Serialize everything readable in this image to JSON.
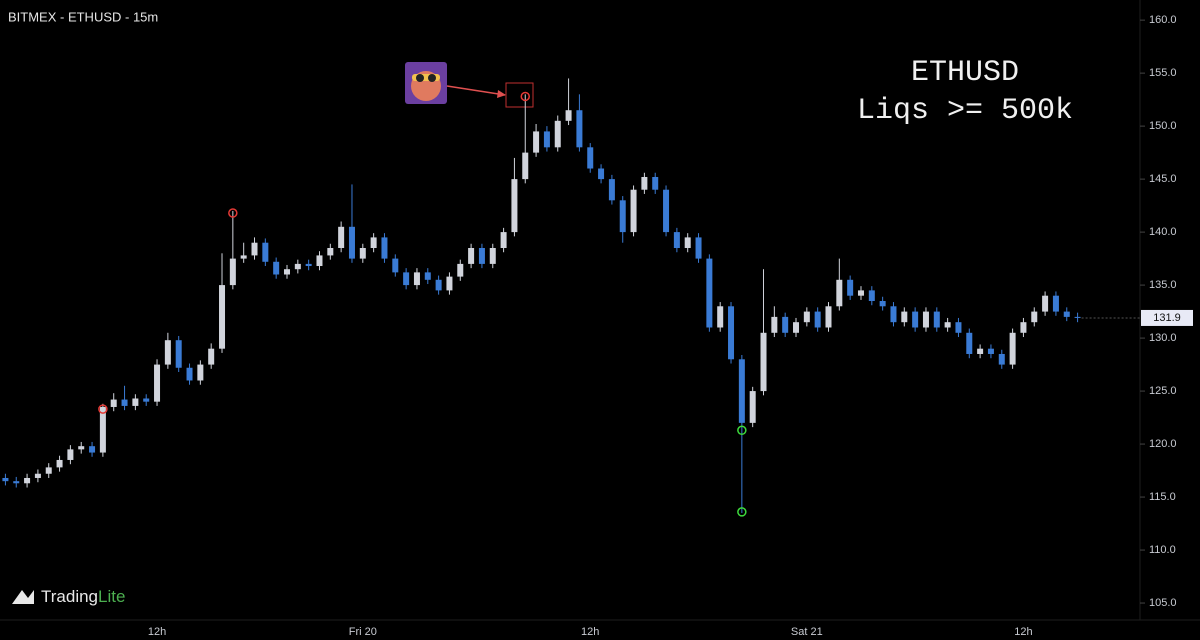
{
  "chart_data": {
    "type": "candlestick",
    "title": "BITMEX - ETHUSD - 15m",
    "annotation": [
      "ETHUSD",
      "Liqs >= 500k"
    ],
    "brand": [
      "Trading",
      "Lite"
    ],
    "up_color": "#d1d4dc",
    "down_color": "#3a7bd5",
    "categories": [
      null,
      null,
      null,
      null,
      null,
      null,
      null,
      null,
      null,
      null,
      null,
      null,
      null,
      null,
      "12h",
      null,
      null,
      null,
      null,
      null,
      null,
      null,
      null,
      null,
      null,
      null,
      null,
      null,
      null,
      null,
      null,
      null,
      null,
      "Fri 20",
      null,
      null,
      null,
      null,
      null,
      null,
      null,
      null,
      null,
      null,
      null,
      null,
      null,
      null,
      null,
      null,
      null,
      null,
      null,
      null,
      "12h",
      null,
      null,
      null,
      null,
      null,
      null,
      null,
      null,
      null,
      null,
      null,
      null,
      null,
      null,
      null,
      null,
      null,
      null,
      null,
      "Sat 21",
      null,
      null,
      null,
      null,
      null,
      null,
      null,
      null,
      null,
      null,
      null,
      null,
      null,
      null,
      null,
      null,
      null,
      null,
      null,
      "12h",
      null,
      null,
      null,
      null,
      null
    ],
    "open": [
      116.8,
      116.5,
      116.3,
      116.8,
      117.2,
      117.8,
      118.5,
      119.5,
      119.8,
      119.2,
      123.5,
      124.2,
      123.6,
      124.3,
      124.0,
      127.5,
      129.8,
      127.2,
      126.0,
      127.5,
      129.0,
      135.0,
      137.5,
      137.8,
      139.0,
      137.2,
      136.0,
      136.5,
      137.0,
      136.8,
      137.8,
      138.5,
      140.5,
      137.5,
      138.5,
      139.5,
      137.5,
      136.2,
      135.0,
      136.2,
      135.5,
      134.5,
      135.8,
      137.0,
      138.5,
      137.0,
      138.5,
      140.0,
      145.0,
      147.5,
      149.5,
      148.0,
      150.5,
      151.5,
      148.0,
      146.0,
      145.0,
      143.0,
      140.0,
      144.0,
      145.2,
      144.0,
      140.0,
      138.5,
      139.5,
      137.5,
      131.0,
      133.0,
      128.0,
      122.0,
      125.0,
      130.5,
      132.0,
      130.5,
      131.5,
      132.5,
      131.0,
      133.0,
      135.5,
      134.0,
      134.5,
      133.5,
      133.0,
      131.5,
      132.5,
      131.0,
      132.5,
      131.0,
      131.5,
      130.5,
      128.5,
      129.0,
      128.5,
      127.5,
      130.5,
      131.5,
      132.5,
      134.0,
      132.5,
      132.0
    ],
    "high": [
      117.2,
      116.9,
      117.2,
      117.6,
      118.2,
      118.9,
      119.9,
      120.2,
      120.2,
      123.8,
      124.8,
      125.5,
      124.7,
      124.7,
      128.0,
      130.5,
      130.2,
      127.6,
      127.9,
      129.5,
      138.0,
      142.0,
      139.0,
      139.5,
      139.4,
      137.6,
      136.9,
      137.4,
      137.4,
      138.2,
      138.9,
      141.0,
      144.5,
      138.9,
      139.9,
      139.9,
      137.9,
      136.6,
      136.6,
      136.6,
      135.9,
      136.2,
      137.4,
      138.9,
      138.9,
      138.9,
      140.4,
      147.0,
      153.0,
      150.2,
      150.0,
      151.0,
      154.5,
      153.0,
      148.4,
      146.4,
      145.4,
      143.4,
      144.4,
      145.6,
      145.6,
      144.4,
      140.4,
      139.9,
      139.9,
      137.9,
      133.4,
      133.4,
      128.4,
      125.4,
      136.5,
      133.0,
      132.4,
      131.9,
      132.9,
      132.9,
      133.4,
      137.5,
      135.9,
      134.9,
      134.9,
      133.9,
      133.4,
      132.9,
      132.9,
      132.9,
      132.9,
      131.9,
      131.9,
      130.9,
      129.4,
      129.4,
      128.9,
      130.9,
      131.9,
      132.9,
      134.4,
      134.4,
      132.9,
      132.4
    ],
    "low": [
      116.1,
      115.9,
      115.9,
      116.4,
      116.8,
      117.4,
      118.1,
      119.1,
      118.8,
      118.8,
      123.1,
      123.2,
      123.2,
      123.6,
      123.6,
      127.1,
      126.8,
      125.6,
      125.6,
      127.1,
      128.6,
      134.6,
      137.1,
      137.4,
      136.8,
      135.6,
      135.6,
      136.1,
      136.4,
      136.4,
      137.4,
      138.1,
      137.1,
      137.1,
      138.1,
      137.1,
      135.8,
      134.6,
      134.6,
      135.1,
      134.1,
      134.1,
      135.4,
      136.6,
      136.6,
      136.6,
      138.1,
      139.6,
      144.6,
      147.1,
      147.6,
      147.6,
      150.1,
      147.6,
      145.6,
      144.6,
      142.6,
      139.0,
      139.6,
      143.6,
      143.6,
      139.6,
      138.1,
      138.1,
      137.1,
      130.6,
      130.6,
      127.6,
      113.5,
      121.6,
      124.6,
      130.1,
      130.1,
      130.1,
      131.1,
      130.6,
      130.6,
      132.6,
      133.6,
      133.6,
      133.1,
      132.6,
      131.1,
      131.1,
      130.6,
      130.6,
      130.6,
      130.6,
      130.1,
      128.1,
      128.1,
      128.1,
      127.1,
      127.1,
      130.1,
      131.1,
      132.1,
      132.1,
      131.6,
      131.5
    ],
    "close": [
      116.5,
      116.3,
      116.8,
      117.2,
      117.8,
      118.5,
      119.5,
      119.8,
      119.2,
      123.5,
      124.2,
      123.6,
      124.3,
      124.0,
      127.5,
      129.8,
      127.2,
      126.0,
      127.5,
      129.0,
      135.0,
      137.5,
      137.8,
      139.0,
      137.2,
      136.0,
      136.5,
      137.0,
      136.8,
      137.8,
      138.5,
      140.5,
      137.5,
      138.5,
      139.5,
      137.5,
      136.2,
      135.0,
      136.2,
      135.5,
      134.5,
      135.8,
      137.0,
      138.5,
      137.0,
      138.5,
      140.0,
      145.0,
      147.5,
      149.5,
      148.0,
      150.5,
      151.5,
      148.0,
      146.0,
      145.0,
      143.0,
      140.0,
      144.0,
      145.2,
      144.0,
      140.0,
      138.5,
      139.5,
      137.5,
      131.0,
      133.0,
      128.0,
      122.0,
      125.0,
      130.5,
      132.0,
      130.5,
      131.5,
      132.5,
      131.0,
      133.0,
      135.5,
      134.0,
      134.5,
      133.5,
      133.0,
      131.5,
      132.5,
      131.0,
      132.5,
      131.0,
      131.5,
      130.5,
      128.5,
      129.0,
      128.5,
      127.5,
      130.5,
      131.5,
      132.5,
      134.0,
      132.5,
      132.0,
      131.9
    ],
    "markers": [
      {
        "index": 9,
        "value": 123.3,
        "color": "#e53935"
      },
      {
        "index": 21,
        "value": 141.8,
        "color": "#e53935"
      },
      {
        "index": 48,
        "value": 152.8,
        "color": "#e53935"
      },
      {
        "index": 68,
        "value": 121.3,
        "color": "#3ddc3d"
      },
      {
        "index": 68,
        "value": 113.6,
        "color": "#3ddc3d"
      }
    ],
    "ylim": [
      103.4,
      161.9
    ],
    "yticks": [
      {
        "value": 105,
        "label": "105.0"
      },
      {
        "value": 110,
        "label": "110.0"
      },
      {
        "value": 115,
        "label": "115.0"
      },
      {
        "value": 120,
        "label": "120.0"
      },
      {
        "value": 125,
        "label": "125.0"
      },
      {
        "value": 130,
        "label": "130.0"
      },
      {
        "value": 135,
        "label": "135.0"
      },
      {
        "value": 140,
        "label": "140.0"
      },
      {
        "value": 145,
        "label": "145.0"
      },
      {
        "value": 150,
        "label": "150.0"
      },
      {
        "value": 155,
        "label": "155.0"
      },
      {
        "value": 160,
        "label": "160.0"
      }
    ],
    "grid": false
  }
}
